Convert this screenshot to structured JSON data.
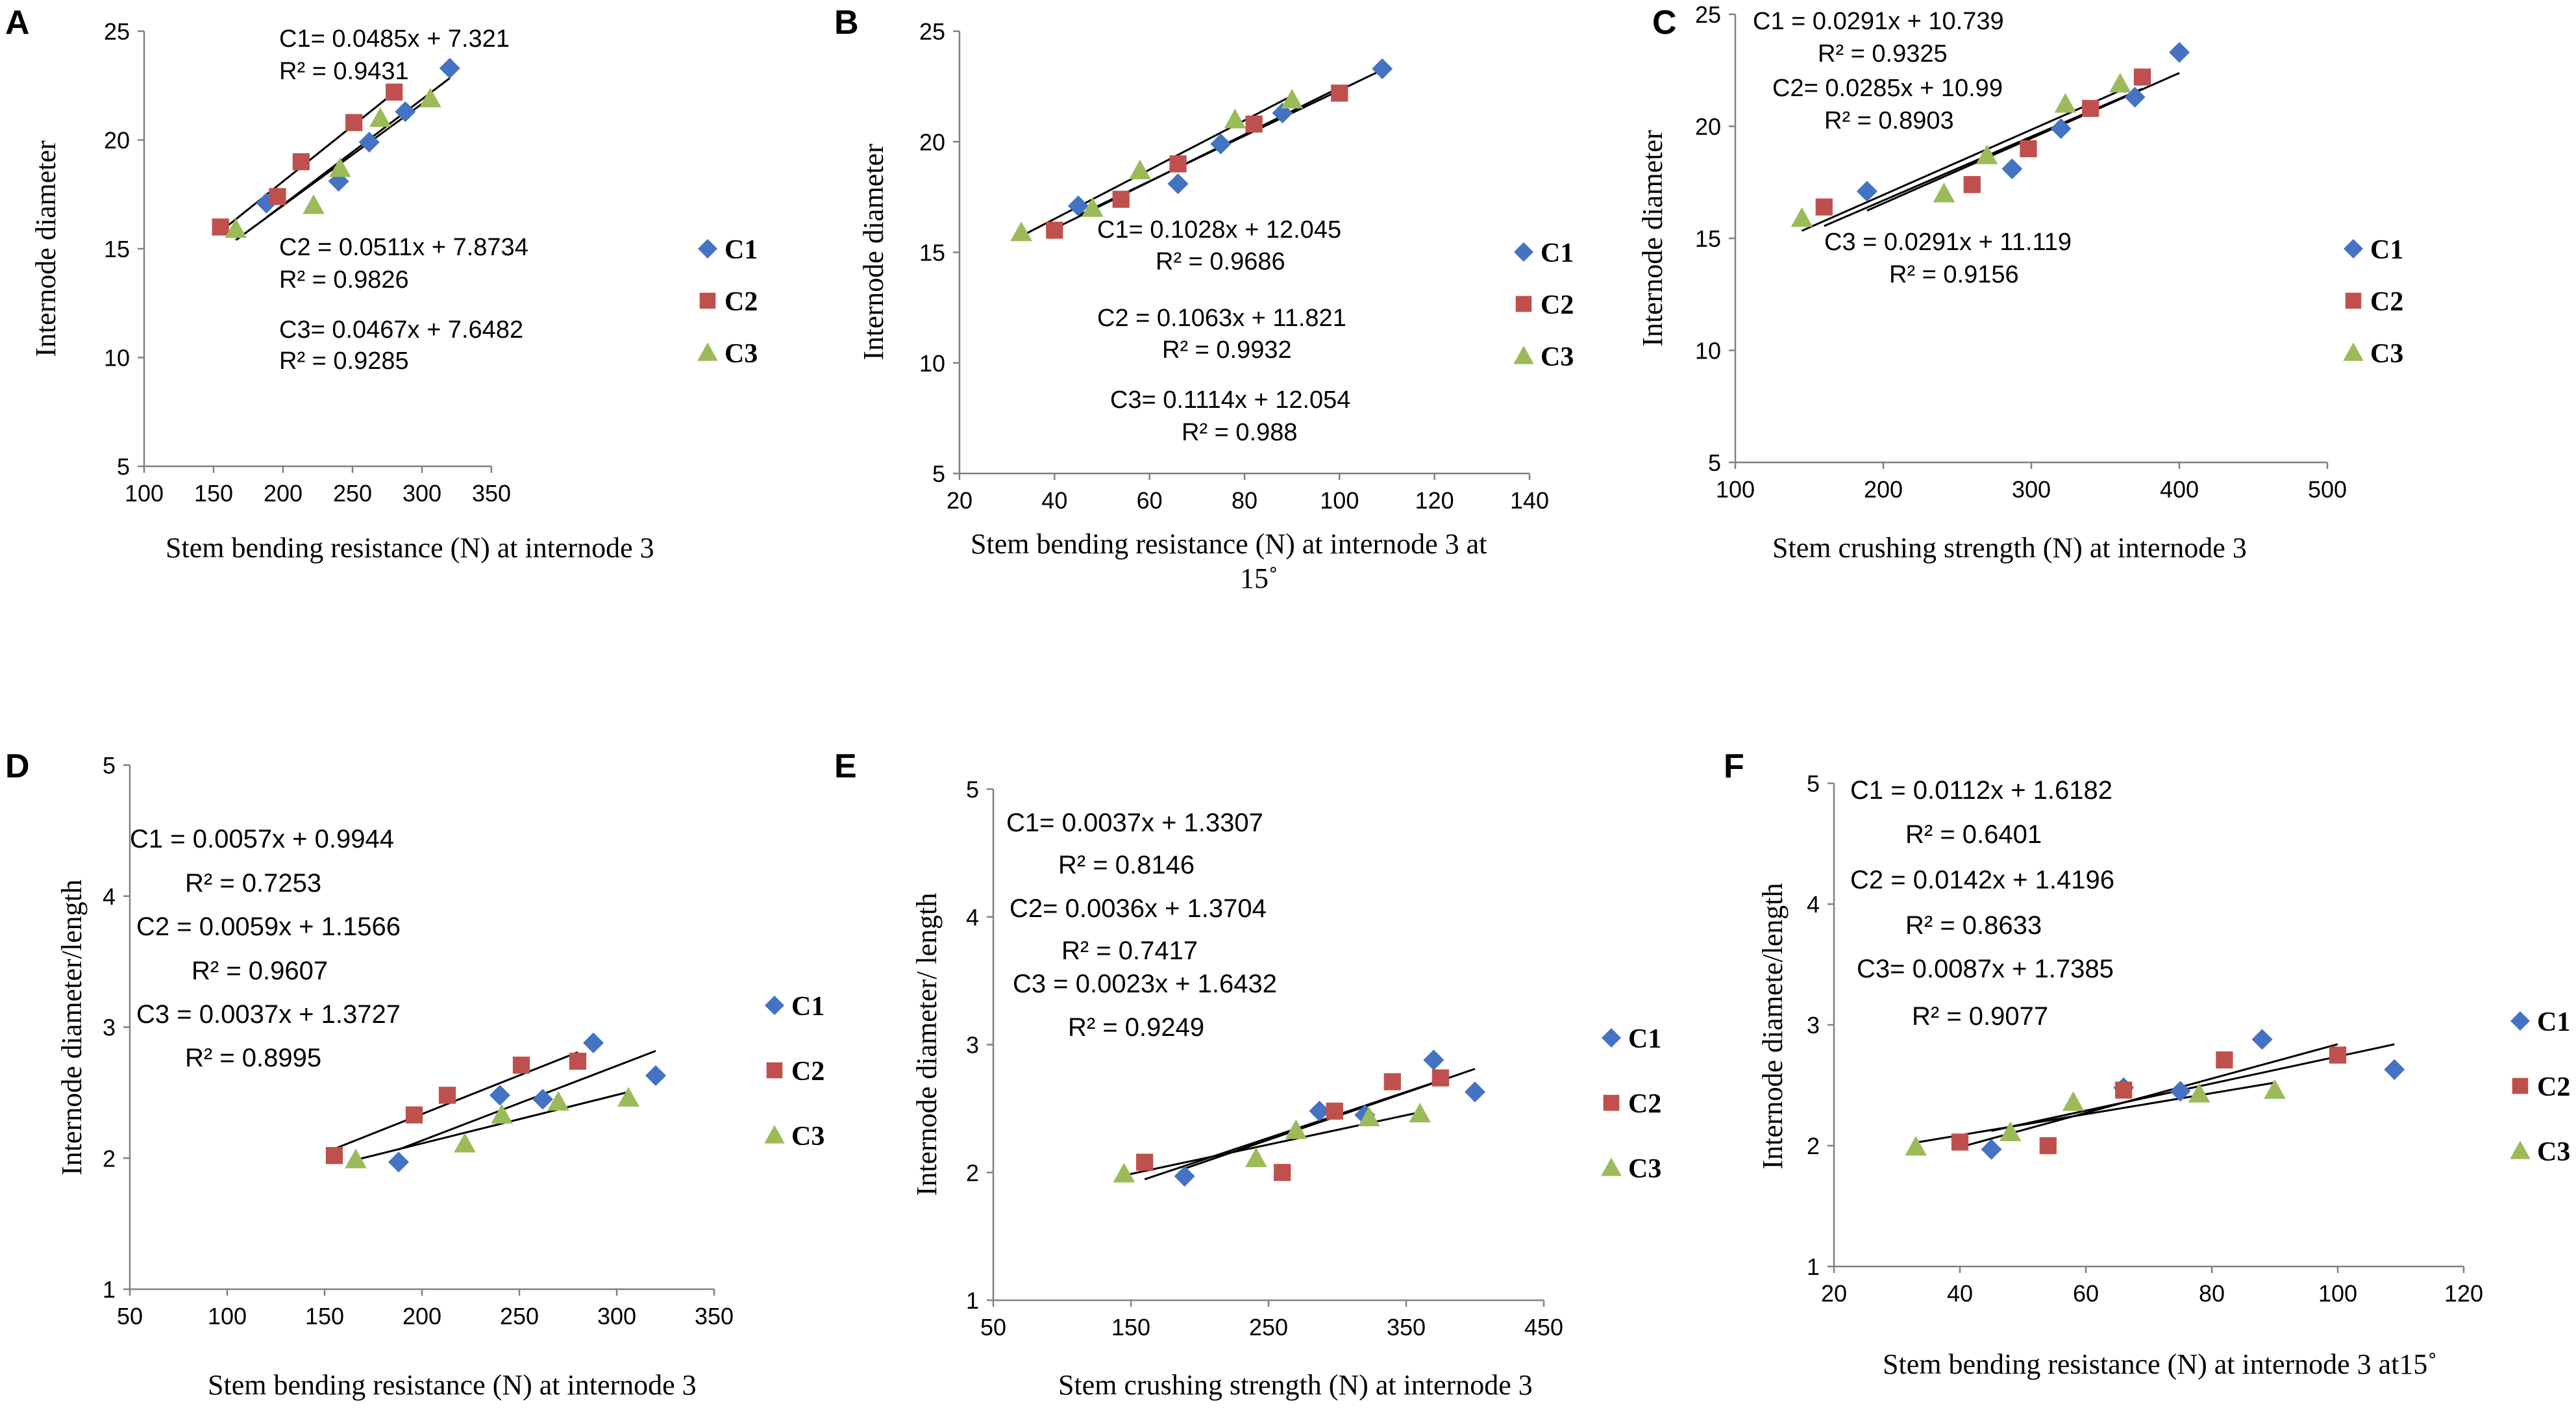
{
  "colors": {
    "C1": "#4472C4",
    "C2": "#C0504D",
    "C3": "#9BBB59",
    "axis": "#808080",
    "fit": "#000000"
  },
  "legend": {
    "C1": "C1",
    "C2": "C2",
    "C3": "C3"
  },
  "chart_data": [
    {
      "panel": "A",
      "type": "scatter",
      "xlabel": "Stem bending  resistance (N) at internode 3",
      "ylabel": "Internode diameter",
      "xlim": [
        100,
        350
      ],
      "ylim": [
        5,
        25
      ],
      "xticks": [
        100,
        150,
        200,
        250,
        300,
        350
      ],
      "yticks": [
        5,
        10,
        15,
        20,
        25
      ],
      "series": [
        {
          "name": "C1",
          "marker": "diamond",
          "x": [
            188,
            240,
            262,
            288,
            320
          ],
          "y": [
            17.1,
            18.1,
            19.9,
            21.3,
            23.3
          ],
          "fit": [
            0.0485,
            7.321
          ]
        },
        {
          "name": "C2",
          "marker": "square",
          "x": [
            155,
            196,
            213,
            251,
            280
          ],
          "y": [
            16.0,
            17.4,
            19.0,
            20.8,
            22.2
          ],
          "fit": [
            0.0511,
            7.8734
          ]
        },
        {
          "name": "C3",
          "marker": "triangle",
          "x": [
            166,
            222,
            241,
            270,
            306
          ],
          "y": [
            15.9,
            17.0,
            18.7,
            21.0,
            21.9
          ],
          "fit": [
            0.0467,
            7.6482
          ]
        }
      ],
      "equations": [
        "C1= 0.0485x + 7.321",
        "R² = 0.9431",
        "C2 = 0.0511x + 7.8734",
        "R² = 0.9826",
        "C3= 0.0467x + 7.6482",
        "R² = 0.9285"
      ]
    },
    {
      "panel": "B",
      "type": "scatter",
      "xlabel": "Stem bending resistance  (N) at internode 3 at 15˚",
      "ylabel": "Internode diameter",
      "xlim": [
        20,
        140
      ],
      "ylim": [
        5,
        25
      ],
      "xticks": [
        20,
        40,
        60,
        80,
        100,
        120,
        140
      ],
      "yticks": [
        5,
        10,
        15,
        20,
        25
      ],
      "series": [
        {
          "name": "C1",
          "marker": "diamond",
          "x": [
            45,
            66,
            75,
            88,
            109
          ],
          "y": [
            17.1,
            18.1,
            19.9,
            21.3,
            23.3
          ],
          "fit": [
            0.1028,
            12.045
          ]
        },
        {
          "name": "C2",
          "marker": "square",
          "x": [
            40,
            54,
            66,
            82,
            100
          ],
          "y": [
            16.0,
            17.4,
            19.0,
            20.8,
            22.2
          ],
          "fit": [
            0.1063,
            11.821
          ]
        },
        {
          "name": "C3",
          "marker": "triangle",
          "x": [
            33,
            48,
            58,
            78,
            90
          ],
          "y": [
            15.9,
            17.0,
            18.7,
            21.0,
            21.9
          ],
          "fit": [
            0.1114,
            12.054
          ]
        }
      ],
      "equations": [
        "C1= 0.1028x + 12.045",
        "R² = 0.9686",
        "C2 = 0.1063x + 11.821",
        "R² = 0.9932",
        "C3= 0.1114x + 12.054",
        "R² = 0.988"
      ]
    },
    {
      "panel": "C",
      "type": "scatter",
      "xlabel": "Stem crushing  strength (N) at internode 3",
      "ylabel": "Internode diameter",
      "xlim": [
        100,
        500
      ],
      "ylim": [
        5,
        25
      ],
      "xticks": [
        100,
        200,
        300,
        400,
        500
      ],
      "yticks": [
        5,
        10,
        15,
        20,
        25
      ],
      "series": [
        {
          "name": "C1",
          "marker": "diamond",
          "x": [
            189,
            287,
            320,
            370,
            400
          ],
          "y": [
            17.1,
            18.1,
            19.9,
            21.3,
            23.3
          ],
          "fit": [
            0.0291,
            10.739
          ]
        },
        {
          "name": "C2",
          "marker": "square",
          "x": [
            160,
            260,
            298,
            340,
            375
          ],
          "y": [
            16.4,
            17.4,
            19.0,
            20.8,
            22.2
          ],
          "fit": [
            0.0285,
            10.99
          ]
        },
        {
          "name": "C3",
          "marker": "triangle",
          "x": [
            145,
            241,
            270,
            323,
            360
          ],
          "y": [
            15.9,
            17.0,
            18.7,
            21.0,
            21.9
          ],
          "fit": [
            0.0291,
            11.119
          ]
        }
      ],
      "equations": [
        "C1 = 0.0291x + 10.739",
        "R² = 0.9325",
        "C2= 0.0285x + 10.99",
        "R² = 0.8903",
        "C3 = 0.0291x + 11.119",
        "R² = 0.9156"
      ]
    },
    {
      "panel": "D",
      "type": "scatter",
      "xlabel": "Stem bending resistance (N) at internode 3",
      "ylabel": "Internode diameter/length",
      "xlim": [
        50,
        350
      ],
      "ylim": [
        1,
        5
      ],
      "xticks": [
        50,
        100,
        150,
        200,
        250,
        300,
        350
      ],
      "yticks": [
        1,
        2,
        3,
        4,
        5
      ],
      "series": [
        {
          "name": "C1",
          "marker": "diamond",
          "x": [
            188,
            240,
            262,
            288,
            320
          ],
          "y": [
            1.97,
            2.48,
            2.45,
            2.88,
            2.63
          ],
          "fit": [
            0.0057,
            0.9944
          ]
        },
        {
          "name": "C2",
          "marker": "square",
          "x": [
            155,
            196,
            213,
            251,
            280
          ],
          "y": [
            2.02,
            2.33,
            2.48,
            2.71,
            2.74
          ],
          "fit": [
            0.0059,
            1.1566
          ]
        },
        {
          "name": "C3",
          "marker": "triangle",
          "x": [
            166,
            222,
            241,
            270,
            306
          ],
          "y": [
            1.99,
            2.11,
            2.33,
            2.43,
            2.46
          ],
          "fit": [
            0.0037,
            1.3727
          ]
        }
      ],
      "equations": [
        "C1 = 0.0057x + 0.9944",
        "R² = 0.7253",
        "C2 = 0.0059x + 1.1566",
        "R² = 0.9607",
        "C3 = 0.0037x + 1.3727",
        "R² = 0.8995"
      ]
    },
    {
      "panel": "E",
      "type": "scatter",
      "xlabel": "Stem crushing strength (N) at internode 3",
      "ylabel": "Internode diameter/ length",
      "xlim": [
        50,
        450
      ],
      "ylim": [
        1,
        5
      ],
      "xticks": [
        50,
        150,
        250,
        350,
        450
      ],
      "yticks": [
        1,
        2,
        3,
        4,
        5
      ],
      "series": [
        {
          "name": "C1",
          "marker": "diamond",
          "x": [
            189,
            287,
            320,
            370,
            400
          ],
          "y": [
            1.97,
            2.48,
            2.45,
            2.88,
            2.63
          ],
          "fit": [
            0.0037,
            1.3307
          ]
        },
        {
          "name": "C2",
          "marker": "square",
          "x": [
            160,
            260,
            298,
            340,
            375
          ],
          "y": [
            2.08,
            2.0,
            2.48,
            2.71,
            2.74
          ],
          "fit": [
            0.0036,
            1.3704
          ]
        },
        {
          "name": "C3",
          "marker": "triangle",
          "x": [
            145,
            241,
            270,
            323,
            360
          ],
          "y": [
            1.99,
            2.11,
            2.33,
            2.43,
            2.46
          ],
          "fit": [
            0.0023,
            1.6432
          ]
        }
      ],
      "equations": [
        "C1= 0.0037x + 1.3307",
        "R² = 0.8146",
        "C2= 0.0036x + 1.3704",
        "R² = 0.7417",
        "C3 = 0.0023x + 1.6432",
        "R² = 0.9249"
      ]
    },
    {
      "panel": "F",
      "type": "scatter",
      "xlabel": "Stem bending resistance (N) at internode 3 at15˚",
      "ylabel": "Internode diamete/length",
      "xlim": [
        20,
        120
      ],
      "ylim": [
        1,
        5
      ],
      "xticks": [
        20,
        40,
        60,
        80,
        100,
        120
      ],
      "yticks": [
        1,
        2,
        3,
        4,
        5
      ],
      "series": [
        {
          "name": "C1",
          "marker": "diamond",
          "x": [
            45,
            66,
            75,
            88,
            109
          ],
          "y": [
            1.97,
            2.48,
            2.45,
            2.88,
            2.63
          ],
          "fit": [
            0.0112,
            1.6182
          ]
        },
        {
          "name": "C2",
          "marker": "square",
          "x": [
            40,
            54,
            66,
            82,
            100
          ],
          "y": [
            2.03,
            2.0,
            2.46,
            2.71,
            2.75
          ],
          "fit": [
            0.0142,
            1.4196
          ]
        },
        {
          "name": "C3",
          "marker": "triangle",
          "x": [
            33,
            48,
            58,
            78,
            90
          ],
          "y": [
            1.99,
            2.11,
            2.36,
            2.43,
            2.46
          ],
          "fit": [
            0.0087,
            1.7385
          ]
        }
      ],
      "equations": [
        "C1 = 0.0112x + 1.6182",
        "R² = 0.6401",
        "C2 = 0.0142x + 1.4196",
        "R² = 0.8633",
        "C3= 0.0087x + 1.7385",
        "R² = 0.9077"
      ]
    }
  ]
}
